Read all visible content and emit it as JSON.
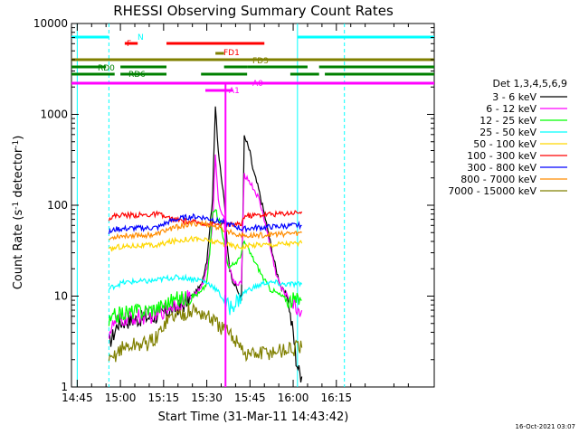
{
  "chart_data": {
    "type": "line",
    "title": "RHESSI Observing Summary Count Rates",
    "xlabel": "Start Time (31-Mar-11 14:43:42)",
    "ylabel_main": "Count Rate (s",
    "ylabel_sup1": "-1",
    "ylabel_mid": " detector",
    "ylabel_sup2": "-1",
    "ylabel_end": ")",
    "yscale": "log",
    "ylim": [
      1,
      10000
    ],
    "xlim_minutes": [
      -2,
      124
    ],
    "x_ticks": [
      {
        "label": "14:45",
        "min": 0
      },
      {
        "label": "15:00",
        "min": 15
      },
      {
        "label": "15:15",
        "min": 30
      },
      {
        "label": "15:30",
        "min": 45
      },
      {
        "label": "15:45",
        "min": 60
      },
      {
        "label": "16:00",
        "min": 75
      },
      {
        "label": "16:15",
        "min": 90
      }
    ],
    "y_ticks": [
      {
        "label": "1",
        "v": 1
      },
      {
        "label": "10",
        "v": 10
      },
      {
        "label": "100",
        "v": 100
      },
      {
        "label": "1000",
        "v": 1000
      },
      {
        "label": "10000",
        "v": 10000
      }
    ],
    "legend_title": "Det 1,3,4,5,6,9",
    "legend_position": "right",
    "timestamp": "16-Oct-2021 03:07",
    "series": [
      {
        "name": "3 - 6 keV",
        "color": "#000000",
        "x": [
          11,
          13,
          14,
          16,
          20,
          24,
          28,
          30,
          33,
          37,
          40,
          43,
          45,
          47,
          48,
          49,
          50,
          51,
          52,
          53,
          54,
          56,
          57,
          58,
          59,
          60,
          61,
          63,
          65,
          67,
          69,
          71,
          73,
          74,
          75,
          76,
          77,
          78
        ],
        "y": [
          3,
          4,
          5,
          5.2,
          5.5,
          5.8,
          6,
          6.5,
          7,
          8,
          10,
          13,
          25,
          120,
          1300,
          400,
          200,
          120,
          40,
          20,
          15,
          11,
          9,
          560,
          480,
          380,
          250,
          150,
          80,
          40,
          20,
          12,
          10,
          6,
          4,
          2,
          1.5,
          1.3
        ]
      },
      {
        "name": "6 - 12 keV",
        "color": "#ff00ff",
        "x": [
          11,
          13,
          14,
          16,
          20,
          24,
          28,
          30,
          33,
          37,
          40,
          43,
          45,
          47,
          48,
          49,
          50,
          51,
          52,
          53,
          54,
          56,
          57,
          58,
          60,
          63,
          65,
          67,
          69,
          71,
          73,
          75,
          77,
          78
        ],
        "y": [
          4,
          5,
          5.3,
          5.5,
          5.8,
          6,
          6.2,
          7,
          8,
          9,
          10,
          12,
          20,
          60,
          350,
          120,
          80,
          70,
          25,
          20,
          15,
          13,
          14,
          220,
          180,
          120,
          70,
          35,
          18,
          12,
          10,
          8,
          7,
          7
        ]
      },
      {
        "name": "12 - 25 keV",
        "color": "#00ff00",
        "x": [
          11,
          13,
          14,
          16,
          20,
          24,
          28,
          30,
          33,
          37,
          40,
          43,
          45,
          46,
          47,
          48,
          49,
          50,
          51,
          52,
          53,
          54,
          56,
          57,
          58,
          60,
          63,
          65,
          67,
          69,
          71,
          73,
          75,
          77,
          78
        ],
        "y": [
          5,
          6,
          6.2,
          6.5,
          6.8,
          7,
          7.5,
          8,
          9,
          9.5,
          10,
          11,
          14,
          30,
          80,
          90,
          70,
          60,
          40,
          25,
          20,
          22,
          25,
          30,
          40,
          30,
          20,
          15,
          12,
          11,
          10,
          9,
          9,
          9,
          9
        ]
      },
      {
        "name": "25 - 50 keV",
        "color": "#00ffff",
        "x": [
          11,
          13,
          14,
          16,
          20,
          24,
          28,
          30,
          33,
          37,
          40,
          43,
          45,
          47,
          48,
          49,
          50,
          51,
          52,
          53,
          54,
          56,
          57,
          58,
          60,
          63,
          65,
          67,
          69,
          71,
          73,
          75,
          77,
          78
        ],
        "y": [
          12,
          13,
          13.5,
          14,
          14.5,
          14.5,
          15,
          15.5,
          16,
          16,
          15.5,
          15,
          14,
          13,
          12,
          11,
          10,
          9,
          8,
          7.5,
          8,
          9,
          10,
          11,
          12,
          13,
          14,
          14,
          14,
          13.5,
          13.5,
          13.5,
          13.5,
          13.5
        ]
      },
      {
        "name": "50 - 100 keV",
        "color": "#ffd700",
        "x": [
          11,
          13,
          14,
          16,
          20,
          24,
          28,
          30,
          33,
          37,
          40,
          43,
          45,
          47,
          48,
          50,
          52,
          54,
          56,
          57,
          58,
          60,
          63,
          65,
          67,
          69,
          71,
          73,
          75,
          77,
          78
        ],
        "y": [
          32,
          34,
          35,
          35,
          36,
          36,
          36,
          38,
          40,
          42,
          43,
          42,
          41,
          40,
          39,
          38,
          37,
          36,
          35,
          35,
          35,
          36,
          37,
          37,
          37,
          37,
          38,
          38,
          38,
          38,
          38
        ]
      },
      {
        "name": "100 - 300 keV",
        "color": "#ff0000",
        "x": [
          11,
          13,
          14,
          16,
          20,
          24,
          28,
          30,
          33,
          37,
          40,
          43,
          45,
          47,
          48,
          50,
          52,
          54,
          56,
          57,
          58,
          60,
          63,
          65,
          67,
          69,
          71,
          73,
          75,
          77,
          78
        ],
        "y": [
          72,
          76,
          78,
          78,
          78,
          78,
          80,
          75,
          70,
          67,
          65,
          64,
          63,
          62,
          62,
          61,
          61,
          61,
          61,
          62,
          76,
          77,
          78,
          79,
          80,
          80,
          81,
          82,
          83,
          84,
          85
        ]
      },
      {
        "name": "300 - 800 keV",
        "color": "#0000ff",
        "x": [
          11,
          13,
          14,
          16,
          20,
          24,
          28,
          30,
          33,
          37,
          40,
          43,
          45,
          47,
          48,
          50,
          52,
          54,
          56,
          57,
          58,
          60,
          63,
          65,
          67,
          69,
          71,
          73,
          75,
          77,
          78
        ],
        "y": [
          50,
          54,
          55,
          55,
          56,
          56,
          57,
          62,
          68,
          73,
          75,
          74,
          72,
          70,
          68,
          66,
          63,
          60,
          57,
          55,
          55,
          56,
          57,
          57,
          58,
          58,
          59,
          59,
          60,
          60,
          60
        ]
      },
      {
        "name": "800 - 7000 keV",
        "color": "#ff8c00",
        "x": [
          11,
          13,
          14,
          16,
          20,
          24,
          28,
          30,
          33,
          37,
          40,
          43,
          45,
          47,
          48,
          50,
          52,
          54,
          56,
          57,
          58,
          60,
          63,
          65,
          67,
          69,
          71,
          73,
          75,
          77,
          78
        ],
        "y": [
          42,
          45,
          46,
          46,
          47,
          47,
          48,
          52,
          56,
          60,
          62,
          63,
          62,
          60,
          58,
          55,
          52,
          50,
          48,
          47,
          46,
          46,
          47,
          47,
          48,
          48,
          48,
          49,
          49,
          49,
          50
        ]
      },
      {
        "name": "7000 - 15000 keV",
        "color": "#808000",
        "x": [
          11,
          13,
          14,
          16,
          20,
          24,
          28,
          30,
          33,
          37,
          40,
          43,
          45,
          47,
          48,
          50,
          52,
          54,
          56,
          57,
          58,
          60,
          63,
          65,
          67,
          69,
          71,
          73,
          75,
          77,
          78
        ],
        "y": [
          1.8,
          2.2,
          2.5,
          2.7,
          2.9,
          3,
          3.5,
          5,
          6,
          6.5,
          7,
          6.5,
          6,
          5.5,
          5,
          4.5,
          4,
          3.5,
          3.2,
          3,
          2.2,
          2.3,
          2.3,
          2.4,
          2.4,
          2.5,
          2.5,
          2.6,
          2.6,
          2.7,
          2.7
        ]
      }
    ],
    "state_bars": [
      {
        "label": "N",
        "color": "#00ffff",
        "segments": [
          [
            -2.5,
            11
          ],
          [
            76.5,
            124
          ]
        ]
      },
      {
        "label": "F",
        "color": "#ff0000",
        "segments": [
          [
            16.5,
            21
          ]
        ]
      },
      {
        "label": "FD1",
        "color": "#ff0000",
        "segments": [
          [
            31,
            65
          ]
        ]
      },
      {
        "label": "FD3",
        "color": "#808000",
        "segments": [
          [
            48,
            51
          ]
        ]
      },
      {
        "label": "",
        "color": "#808000",
        "segments": [
          [
            -2.5,
            124
          ]
        ]
      },
      {
        "label": "RD0",
        "color": "#008000",
        "segments": [
          [
            -2.5,
            10
          ],
          [
            15,
            31
          ],
          [
            51,
            59
          ],
          [
            59,
            80
          ],
          [
            84,
            124
          ]
        ]
      },
      {
        "label": "RD6",
        "color": "#008000",
        "segments": [
          [
            -2.5,
            13
          ],
          [
            15,
            31
          ],
          [
            43,
            59
          ],
          [
            74,
            84
          ],
          [
            86,
            124
          ]
        ]
      },
      {
        "label": "A0",
        "color": "#ff00ff",
        "segments": [
          [
            -2.5,
            124
          ]
        ]
      },
      {
        "label": "A1",
        "color": "#ff00ff",
        "segments": [
          [
            44.5,
            54
          ]
        ]
      }
    ],
    "attenuator_spike_min": 51.5,
    "vlines": [
      {
        "min": 0,
        "color": "#00ffff",
        "style": "solid"
      },
      {
        "min": 11,
        "color": "#00ffff",
        "style": "dashed"
      },
      {
        "min": 76.5,
        "color": "#00ffff",
        "style": "solid"
      },
      {
        "min": 92.8,
        "color": "#00ffff",
        "style": "dashed"
      }
    ]
  }
}
